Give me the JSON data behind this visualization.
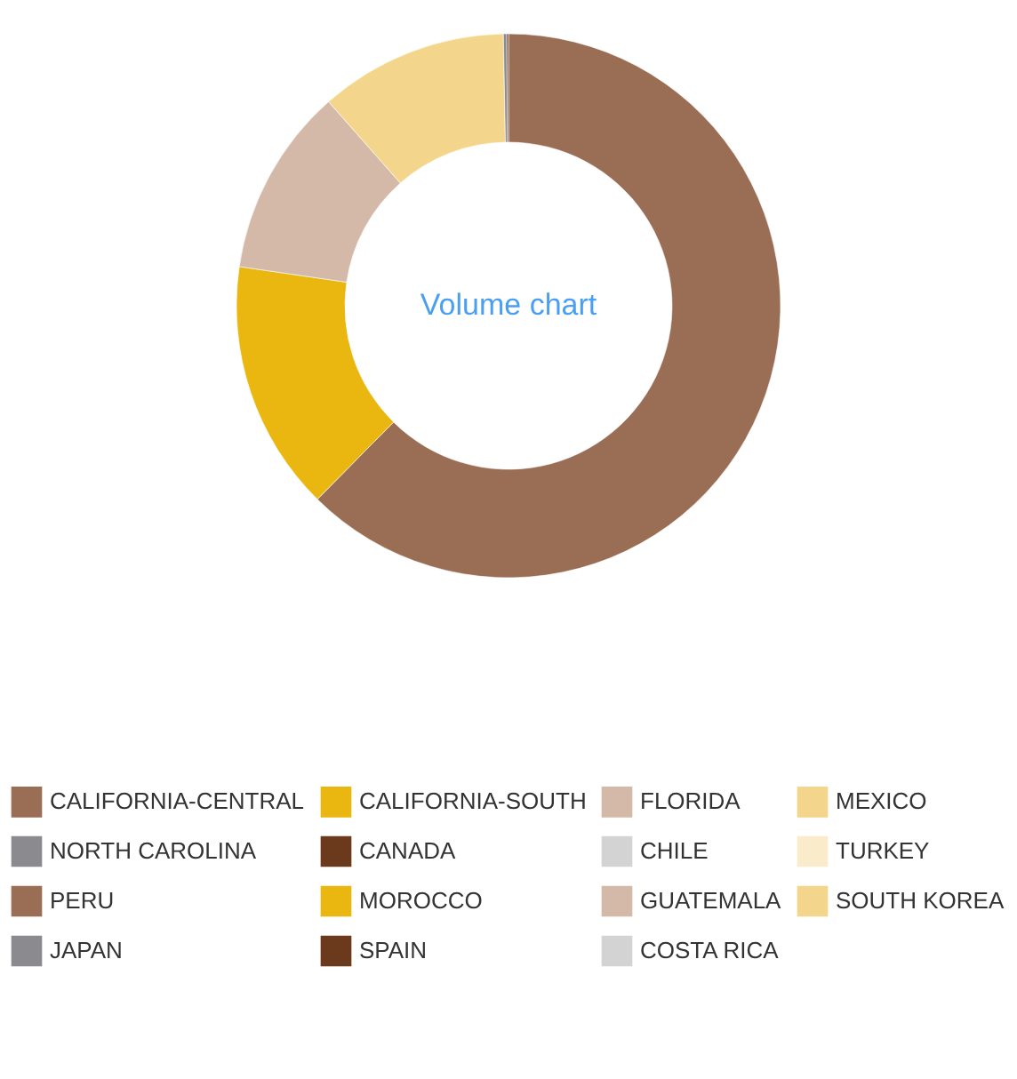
{
  "chart_data": {
    "type": "donut",
    "title": "Volume chart",
    "categories": [
      "CALIFORNIA-CENTRAL",
      "CALIFORNIA-SOUTH",
      "FLORIDA",
      "MEXICO",
      "NORTH CAROLINA",
      "CANADA",
      "CHILE",
      "TURKEY",
      "PERU",
      "MOROCCO",
      "GUATEMALA",
      "SOUTH KOREA",
      "JAPAN",
      "SPAIN",
      "COSTA RICA"
    ],
    "values": [
      62.4,
      14.9,
      11.2,
      11.2,
      0.2,
      0.1,
      null,
      null,
      null,
      null,
      null,
      null,
      null,
      null,
      null
    ],
    "colors": [
      "#9a6e55",
      "#e9b70f",
      "#d4b8a8",
      "#f3d68c",
      "#8b8b8f",
      "#6b3a1c",
      "#d3d3d3",
      "#faeccb",
      "#9a6e55",
      "#e9b70f",
      "#d4b8a8",
      "#f3d68c",
      "#8b8b8f",
      "#6b3a1c",
      "#d3d3d3"
    ],
    "legend": "bottom"
  }
}
